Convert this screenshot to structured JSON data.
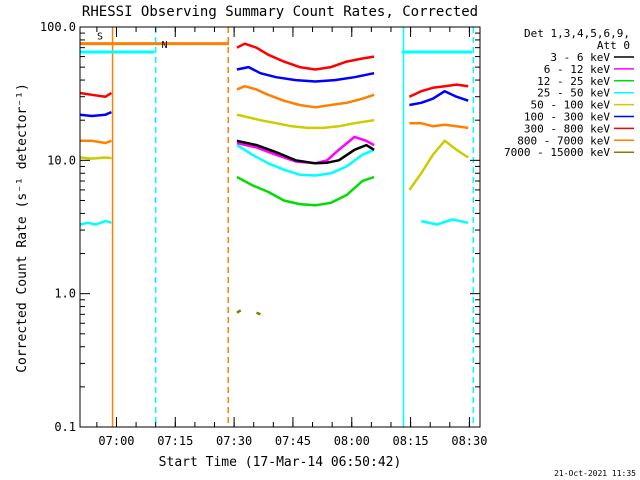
{
  "chart_data": {
    "type": "line",
    "title": "RHESSI Observing Summary Count Rates, Corrected",
    "xlabel": "Start Time (17-Mar-14 06:50:42)",
    "ylabel": "Corrected Count Rate (s⁻¹ detector⁻¹)",
    "y_scale": "log",
    "ylim": [
      0.1,
      100.0
    ],
    "y_ticks": [
      {
        "value": 0.1,
        "label": "0.1"
      },
      {
        "value": 1.0,
        "label": "1.0"
      },
      {
        "value": 10.0,
        "label": "10.0"
      },
      {
        "value": 100.0,
        "label": "100.0"
      }
    ],
    "x_unit": "minutes after 06:50:42",
    "xlim": [
      0,
      102
    ],
    "x_ticks": [
      {
        "value": 9.3,
        "label": "07:00"
      },
      {
        "value": 24.3,
        "label": "07:15"
      },
      {
        "value": 39.3,
        "label": "07:30"
      },
      {
        "value": 54.3,
        "label": "07:45"
      },
      {
        "value": 69.3,
        "label": "08:00"
      },
      {
        "value": 84.3,
        "label": "08:15"
      },
      {
        "value": 99.3,
        "label": "08:30"
      }
    ],
    "legend": {
      "placement": "right",
      "header": [
        "Det 1,3,4,5,6,9,",
        "Att 0"
      ],
      "entries": [
        {
          "label": "3 - 6 keV",
          "color": "#000000"
        },
        {
          "label": "6 - 12 keV",
          "color": "#ff00ff"
        },
        {
          "label": "12 - 25 keV",
          "color": "#00dd00"
        },
        {
          "label": "25 - 50 keV",
          "color": "#00ffff"
        },
        {
          "label": "50 - 100 keV",
          "color": "#cccc00"
        },
        {
          "label": "100 - 300 keV",
          "color": "#0000ff"
        },
        {
          "label": "300 - 800 keV",
          "color": "#ff0000"
        },
        {
          "label": "800 - 7000 keV",
          "color": "#ff8000"
        },
        {
          "label": "7000 - 15000 keV",
          "color": "#808000"
        }
      ]
    },
    "series": [
      {
        "name": "3 - 6 keV",
        "color": "#000000",
        "segments": [
          {
            "x": [
              40,
              45,
              50,
              55,
              60,
              63,
              66,
              70,
              73,
              75
            ],
            "y": [
              14,
              13,
              11.5,
              10,
              9.5,
              9.6,
              10,
              12,
              13,
              12
            ]
          }
        ]
      },
      {
        "name": "6 - 12 keV",
        "color": "#ff00ff",
        "segments": [
          {
            "x": [
              40,
              45,
              50,
              55,
              60,
              63,
              66,
              70,
              73,
              75
            ],
            "y": [
              13.5,
              12.5,
              11,
              9.8,
              9.5,
              10,
              12,
              15,
              14,
              13
            ]
          }
        ]
      },
      {
        "name": "12 - 25 keV",
        "color": "#00dd00",
        "segments": [
          {
            "x": [
              40,
              44,
              48,
              52,
              56,
              60,
              64,
              68,
              72,
              75
            ],
            "y": [
              7.5,
              6.5,
              5.8,
              5,
              4.7,
              4.6,
              4.8,
              5.5,
              7,
              7.5
            ]
          }
        ]
      },
      {
        "name": "25 - 50 keV",
        "color": "#00ffff",
        "segments": [
          {
            "x": [
              0,
              2,
              4,
              6.5,
              8
            ],
            "y": [
              3.3,
              3.4,
              3.3,
              3.5,
              3.4
            ]
          },
          {
            "x": [
              40,
              44,
              48,
              52,
              56,
              60,
              64,
              68,
              72,
              75
            ],
            "y": [
              13,
              11,
              9.5,
              8.5,
              7.8,
              7.7,
              8,
              9,
              11,
              12
            ]
          },
          {
            "x": [
              87,
              91,
              95,
              99
            ],
            "y": [
              3.5,
              3.3,
              3.6,
              3.4
            ]
          }
        ]
      },
      {
        "name": "50 - 100 keV",
        "color": "#cccc00",
        "segments": [
          {
            "x": [
              0,
              3,
              6.5,
              8
            ],
            "y": [
              10.5,
              10.3,
              10.5,
              10.4
            ]
          },
          {
            "x": [
              40,
              43,
              46,
              50,
              54,
              58,
              62,
              66,
              70,
              75
            ],
            "y": [
              22,
              21,
              20,
              19,
              18,
              17.5,
              17.5,
              18,
              19,
              20
            ]
          },
          {
            "x": [
              84,
              87,
              90,
              93,
              96,
              99
            ],
            "y": [
              6,
              8,
              11,
              14,
              12,
              10.5
            ]
          }
        ]
      },
      {
        "name": "100 - 300 keV",
        "color": "#0000ff",
        "segments": [
          {
            "x": [
              0,
              3,
              6.5,
              8
            ],
            "y": [
              22,
              21.5,
              22,
              23
            ]
          },
          {
            "x": [
              40,
              43,
              46,
              50,
              55,
              60,
              65,
              70,
              75
            ],
            "y": [
              48,
              50,
              45,
              42,
              40,
              39,
              40,
              42,
              45
            ]
          },
          {
            "x": [
              84,
              87,
              90,
              93,
              96,
              99
            ],
            "y": [
              26,
              27,
              29,
              33,
              30,
              28
            ]
          }
        ]
      },
      {
        "name": "300 - 800 keV",
        "color": "#ff0000",
        "segments": [
          {
            "x": [
              0,
              3,
              6.5,
              8
            ],
            "y": [
              32,
              31,
              30,
              32
            ]
          },
          {
            "x": [
              40,
              42,
              45,
              48,
              52,
              56,
              60,
              64,
              68,
              72,
              75
            ],
            "y": [
              70,
              75,
              70,
              62,
              55,
              50,
              48,
              50,
              55,
              58,
              60
            ]
          },
          {
            "x": [
              84,
              87,
              90,
              93,
              96,
              99
            ],
            "y": [
              30,
              33,
              35,
              36,
              37,
              36
            ]
          }
        ]
      },
      {
        "name": "800 - 7000 keV",
        "color": "#ff8000",
        "segments": [
          {
            "x": [
              0,
              3,
              6.5,
              8
            ],
            "y": [
              14,
              14,
              13.5,
              14
            ]
          },
          {
            "x": [
              40,
              42,
              45,
              48,
              52,
              56,
              60,
              64,
              68,
              72,
              75
            ],
            "y": [
              34,
              36,
              34,
              31,
              28,
              26,
              25,
              26,
              27,
              29,
              31
            ]
          },
          {
            "x": [
              84,
              87,
              90,
              93,
              96,
              99
            ],
            "y": [
              19,
              19,
              18,
              18.5,
              18,
              17.5
            ]
          }
        ]
      },
      {
        "name": "7000 - 15000 keV",
        "color": "#808000",
        "segments": [
          {
            "x": [
              40,
              41
            ],
            "y": [
              0.72,
              0.75
            ]
          },
          {
            "x": [
              45,
              46
            ],
            "y": [
              0.72,
              0.7
            ]
          }
        ]
      }
    ],
    "attenuator_bars": [
      {
        "label": "S",
        "x": [
          0,
          38
        ],
        "y": 75,
        "color": "#ff8000"
      },
      {
        "label": "N",
        "x": [
          0,
          19
        ],
        "y": 65,
        "color": "#00ffff"
      },
      {
        "label": "",
        "x": [
          82,
          100
        ],
        "y": 65,
        "color": "#00ffff"
      }
    ],
    "vertical_markers": [
      {
        "x": 8.3,
        "style": "solid",
        "color": "#ff8000"
      },
      {
        "x": 19.3,
        "style": "dashed",
        "color": "#00ffff"
      },
      {
        "x": 37.8,
        "style": "dashed",
        "color": "#ff8000"
      },
      {
        "x": 82.5,
        "style": "solid",
        "color": "#00ffff"
      },
      {
        "x": 100.3,
        "style": "dashed",
        "color": "#00ffff"
      }
    ],
    "footer_date": "21-Oct-2021 11:35"
  }
}
